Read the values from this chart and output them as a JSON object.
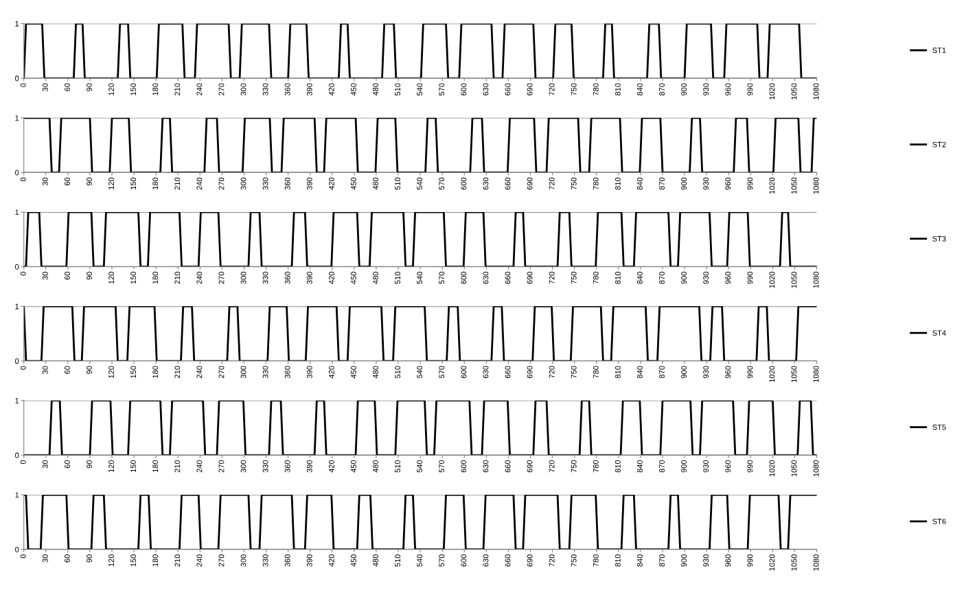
{
  "chart_data": [
    {
      "type": "line",
      "xlim": [
        0,
        1080
      ],
      "xticks": [
        0,
        30,
        60,
        90,
        120,
        150,
        180,
        210,
        240,
        270,
        300,
        330,
        360,
        390,
        420,
        450,
        480,
        510,
        540,
        570,
        600,
        630,
        660,
        690,
        720,
        750,
        780,
        810,
        840,
        870,
        900,
        930,
        960,
        990,
        1020,
        1050,
        1080
      ],
      "ylim": [
        0,
        1
      ],
      "yticks": [
        0,
        1
      ],
      "grid": "y",
      "legend": "right",
      "series": [
        {
          "name": "ST1",
          "color": "#000000",
          "x": [
            0,
            3,
            25,
            28,
            68,
            71,
            80,
            83,
            128,
            131,
            142,
            145,
            181,
            184,
            216,
            219,
            233,
            236,
            279,
            282,
            294,
            297,
            334,
            337,
            360,
            363,
            385,
            388,
            429,
            432,
            441,
            444,
            488,
            491,
            504,
            507,
            541,
            544,
            575,
            578,
            593,
            596,
            637,
            640,
            652,
            655,
            694,
            697,
            721,
            724,
            746,
            749,
            789,
            792,
            801,
            804,
            849,
            852,
            865,
            868,
            900,
            903,
            936,
            939,
            954,
            957,
            999,
            1002,
            1013,
            1016,
            1056,
            1059,
            1080
          ],
          "values": [
            0,
            1,
            1,
            0,
            0,
            1,
            1,
            0,
            0,
            1,
            1,
            0,
            0,
            1,
            1,
            0,
            0,
            1,
            1,
            0,
            0,
            1,
            1,
            0,
            0,
            1,
            1,
            0,
            0,
            1,
            1,
            0,
            0,
            1,
            1,
            0,
            0,
            1,
            1,
            0,
            0,
            1,
            1,
            0,
            0,
            1,
            1,
            0,
            0,
            1,
            1,
            0,
            0,
            1,
            1,
            0,
            0,
            1,
            1,
            0,
            0,
            1,
            1,
            0,
            0,
            1,
            1,
            0,
            0,
            1,
            1,
            0,
            0
          ]
        }
      ]
    },
    {
      "type": "line",
      "xlim": [
        0,
        1080
      ],
      "xticks": [
        0,
        30,
        60,
        90,
        120,
        150,
        180,
        210,
        240,
        270,
        300,
        330,
        360,
        390,
        420,
        450,
        480,
        510,
        540,
        570,
        600,
        630,
        660,
        690,
        720,
        750,
        780,
        810,
        840,
        870,
        900,
        930,
        960,
        990,
        1020,
        1050,
        1080
      ],
      "ylim": [
        0,
        1
      ],
      "yticks": [
        0,
        1
      ],
      "grid": "y",
      "legend": "right",
      "series": [
        {
          "name": "ST2",
          "color": "#000000",
          "x": [
            0,
            35,
            38,
            48,
            51,
            90,
            93,
            117,
            120,
            143,
            146,
            186,
            189,
            199,
            202,
            246,
            249,
            263,
            266,
            298,
            301,
            335,
            338,
            351,
            354,
            396,
            399,
            409,
            412,
            452,
            455,
            479,
            482,
            506,
            509,
            547,
            550,
            561,
            564,
            608,
            611,
            624,
            627,
            659,
            662,
            695,
            698,
            712,
            715,
            755,
            758,
            770,
            773,
            812,
            815,
            839,
            842,
            867,
            870,
            907,
            910,
            921,
            924,
            967,
            970,
            985,
            988,
            1021,
            1024,
            1055,
            1058,
            1073,
            1076,
            1080
          ],
          "values": [
            1,
            1,
            0,
            0,
            1,
            1,
            0,
            0,
            1,
            1,
            0,
            0,
            1,
            1,
            0,
            0,
            1,
            1,
            0,
            0,
            1,
            1,
            0,
            0,
            1,
            1,
            0,
            0,
            1,
            1,
            0,
            0,
            1,
            1,
            0,
            0,
            1,
            1,
            0,
            0,
            1,
            1,
            0,
            0,
            1,
            1,
            0,
            0,
            1,
            1,
            0,
            0,
            1,
            1,
            0,
            0,
            1,
            1,
            0,
            0,
            1,
            1,
            0,
            0,
            1,
            1,
            0,
            0,
            1,
            1,
            0,
            0,
            1,
            1
          ]
        }
      ]
    },
    {
      "type": "line",
      "xlim": [
        0,
        1080
      ],
      "xticks": [
        0,
        30,
        60,
        90,
        120,
        150,
        180,
        210,
        240,
        270,
        300,
        330,
        360,
        390,
        420,
        450,
        480,
        510,
        540,
        570,
        600,
        630,
        660,
        690,
        720,
        750,
        780,
        810,
        840,
        870,
        900,
        930,
        960,
        990,
        1020,
        1050,
        1080
      ],
      "ylim": [
        0,
        1
      ],
      "yticks": [
        0,
        1
      ],
      "grid": "y",
      "legend": "right",
      "series": [
        {
          "name": "ST3",
          "color": "#000000",
          "x": [
            0,
            3,
            6,
            21,
            24,
            58,
            61,
            92,
            95,
            109,
            112,
            156,
            159,
            169,
            172,
            212,
            215,
            238,
            241,
            265,
            268,
            306,
            309,
            321,
            324,
            365,
            368,
            383,
            386,
            419,
            422,
            454,
            457,
            471,
            474,
            517,
            520,
            530,
            533,
            572,
            575,
            599,
            602,
            626,
            629,
            667,
            670,
            680,
            683,
            727,
            730,
            743,
            746,
            779,
            782,
            814,
            817,
            831,
            834,
            878,
            881,
            891,
            894,
            934,
            937,
            958,
            961,
            986,
            989,
            1030,
            1033,
            1041,
            1044,
            1080
          ],
          "values": [
            0,
            0,
            1,
            1,
            0,
            0,
            1,
            1,
            0,
            0,
            1,
            1,
            0,
            0,
            1,
            1,
            0,
            0,
            1,
            1,
            0,
            0,
            1,
            1,
            0,
            0,
            1,
            1,
            0,
            0,
            1,
            1,
            0,
            0,
            1,
            1,
            0,
            0,
            1,
            1,
            0,
            0,
            1,
            1,
            0,
            0,
            1,
            1,
            0,
            0,
            1,
            1,
            0,
            0,
            1,
            1,
            0,
            0,
            1,
            1,
            0,
            0,
            1,
            1,
            0,
            0,
            1,
            1,
            0,
            0,
            1,
            1,
            0,
            0
          ]
        }
      ]
    },
    {
      "type": "line",
      "xlim": [
        0,
        1080
      ],
      "xticks": [
        0,
        30,
        60,
        90,
        120,
        150,
        180,
        210,
        240,
        270,
        300,
        330,
        360,
        390,
        420,
        450,
        480,
        510,
        540,
        570,
        600,
        630,
        660,
        690,
        720,
        750,
        780,
        810,
        840,
        870,
        900,
        930,
        960,
        990,
        1020,
        1050,
        1080
      ],
      "ylim": [
        0,
        1
      ],
      "yticks": [
        0,
        1
      ],
      "grid": "y",
      "legend": "right",
      "series": [
        {
          "name": "ST4",
          "color": "#000000",
          "x": [
            0,
            3,
            24,
            27,
            66,
            69,
            79,
            82,
            125,
            128,
            141,
            144,
            178,
            181,
            214,
            217,
            229,
            232,
            277,
            280,
            291,
            294,
            332,
            335,
            358,
            361,
            384,
            387,
            426,
            429,
            441,
            444,
            487,
            490,
            503,
            506,
            546,
            549,
            576,
            579,
            591,
            594,
            637,
            640,
            651,
            654,
            693,
            696,
            719,
            722,
            745,
            748,
            786,
            789,
            800,
            803,
            847,
            850,
            863,
            866,
            920,
            923,
            935,
            938,
            951,
            954,
            998,
            1001,
            1012,
            1015,
            1052,
            1055,
            1080
          ],
          "values": [
            1,
            0,
            0,
            1,
            1,
            0,
            0,
            1,
            1,
            0,
            0,
            1,
            1,
            0,
            0,
            1,
            1,
            0,
            0,
            1,
            1,
            0,
            0,
            1,
            1,
            0,
            0,
            1,
            1,
            0,
            0,
            1,
            1,
            0,
            0,
            1,
            1,
            0,
            0,
            1,
            1,
            0,
            0,
            1,
            1,
            0,
            0,
            1,
            1,
            0,
            0,
            1,
            1,
            0,
            0,
            1,
            1,
            0,
            0,
            1,
            1,
            0,
            0,
            1,
            1,
            0,
            0,
            1,
            1,
            0,
            0,
            1,
            1
          ]
        }
      ]
    },
    {
      "type": "line",
      "xlim": [
        0,
        1080
      ],
      "xticks": [
        0,
        30,
        60,
        90,
        120,
        150,
        180,
        210,
        240,
        270,
        300,
        330,
        360,
        390,
        420,
        450,
        480,
        510,
        540,
        570,
        600,
        630,
        660,
        690,
        720,
        750,
        780,
        810,
        840,
        870,
        900,
        930,
        960,
        990,
        1020,
        1050,
        1080
      ],
      "ylim": [
        0,
        1
      ],
      "yticks": [
        0,
        1
      ],
      "grid": "y",
      "legend": "right",
      "series": [
        {
          "name": "ST5",
          "color": "#000000",
          "x": [
            0,
            35,
            38,
            49,
            52,
            90,
            93,
            118,
            121,
            142,
            145,
            186,
            189,
            199,
            202,
            244,
            247,
            263,
            266,
            299,
            302,
            334,
            337,
            350,
            353,
            396,
            399,
            409,
            412,
            452,
            455,
            478,
            481,
            506,
            509,
            546,
            549,
            559,
            562,
            607,
            610,
            624,
            627,
            659,
            662,
            694,
            697,
            712,
            715,
            757,
            760,
            770,
            773,
            813,
            816,
            839,
            842,
            867,
            870,
            908,
            911,
            921,
            924,
            966,
            969,
            985,
            988,
            1020,
            1023,
            1054,
            1057,
            1072,
            1075,
            1080
          ],
          "values": [
            0,
            0,
            1,
            1,
            0,
            0,
            1,
            1,
            0,
            0,
            1,
            1,
            0,
            0,
            1,
            1,
            0,
            0,
            1,
            1,
            0,
            0,
            1,
            1,
            0,
            0,
            1,
            1,
            0,
            0,
            1,
            1,
            0,
            0,
            1,
            1,
            0,
            0,
            1,
            1,
            0,
            0,
            1,
            1,
            0,
            0,
            1,
            1,
            0,
            0,
            1,
            1,
            0,
            0,
            1,
            1,
            0,
            0,
            1,
            1,
            0,
            0,
            1,
            1,
            0,
            0,
            1,
            1,
            0,
            0,
            1,
            1,
            0,
            0
          ]
        }
      ]
    },
    {
      "type": "line",
      "xlim": [
        0,
        1080
      ],
      "xticks": [
        0,
        30,
        60,
        90,
        120,
        150,
        180,
        210,
        240,
        270,
        300,
        330,
        360,
        390,
        420,
        450,
        480,
        510,
        540,
        570,
        600,
        630,
        660,
        690,
        720,
        750,
        780,
        810,
        840,
        870,
        900,
        930,
        960,
        990,
        1020,
        1050,
        1080
      ],
      "ylim": [
        0,
        1
      ],
      "yticks": [
        0,
        1
      ],
      "grid": "y",
      "legend": "right",
      "series": [
        {
          "name": "ST6",
          "color": "#000000",
          "x": [
            0,
            3,
            6,
            23,
            26,
            58,
            61,
            92,
            95,
            109,
            112,
            156,
            159,
            170,
            173,
            212,
            215,
            238,
            241,
            265,
            268,
            306,
            309,
            321,
            324,
            365,
            368,
            383,
            386,
            419,
            422,
            454,
            457,
            472,
            475,
            517,
            520,
            530,
            533,
            572,
            575,
            599,
            602,
            626,
            629,
            667,
            670,
            680,
            683,
            727,
            730,
            743,
            746,
            779,
            782,
            814,
            817,
            831,
            834,
            878,
            881,
            891,
            894,
            934,
            937,
            958,
            961,
            986,
            989,
            1028,
            1031,
            1041,
            1044,
            1080
          ],
          "values": [
            1,
            1,
            0,
            0,
            1,
            1,
            0,
            0,
            1,
            1,
            0,
            0,
            1,
            1,
            0,
            0,
            1,
            1,
            0,
            0,
            1,
            1,
            0,
            0,
            1,
            1,
            0,
            0,
            1,
            1,
            0,
            0,
            1,
            1,
            0,
            0,
            1,
            1,
            0,
            0,
            1,
            1,
            0,
            0,
            1,
            1,
            0,
            0,
            1,
            1,
            0,
            0,
            1,
            1,
            0,
            0,
            1,
            1,
            0,
            0,
            1,
            1,
            0,
            0,
            1,
            1,
            0,
            0,
            1,
            1,
            0,
            0,
            1,
            1
          ]
        }
      ]
    }
  ]
}
